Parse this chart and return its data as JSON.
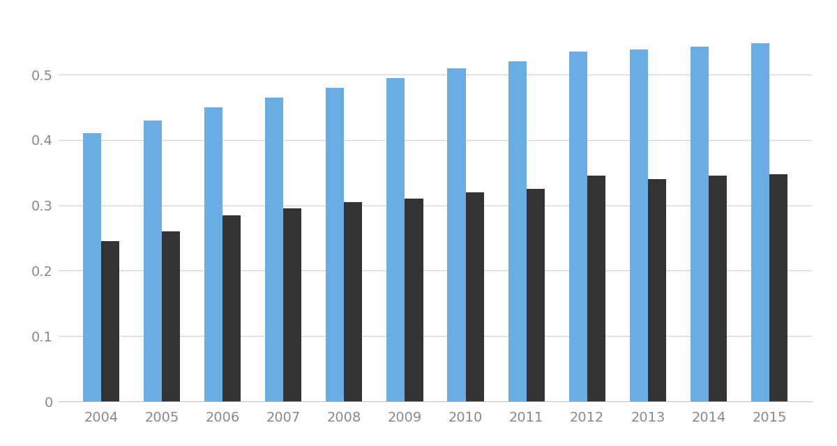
{
  "years": [
    "2004",
    "2005",
    "2006",
    "2007",
    "2008",
    "2009",
    "2010",
    "2011",
    "2012",
    "2013",
    "2014",
    "2015"
  ],
  "antofagasta": [
    0.41,
    0.43,
    0.45,
    0.465,
    0.48,
    0.495,
    0.51,
    0.52,
    0.535,
    0.538,
    0.543,
    0.548
  ],
  "chile": [
    0.245,
    0.26,
    0.285,
    0.295,
    0.305,
    0.31,
    0.32,
    0.325,
    0.345,
    0.34,
    0.345,
    0.348
  ],
  "color_antofagasta": "#6AADE4",
  "color_chile": "#333333",
  "background_color": "#FFFFFF",
  "ylim": [
    0,
    0.58
  ],
  "yticks": [
    0,
    0.1,
    0.2,
    0.3,
    0.4,
    0.5
  ],
  "bar_width": 0.3,
  "grid_color": "#D0D0D0",
  "spine_color": "#C0C0C0",
  "tick_label_color": "#888888",
  "tick_fontsize": 14
}
